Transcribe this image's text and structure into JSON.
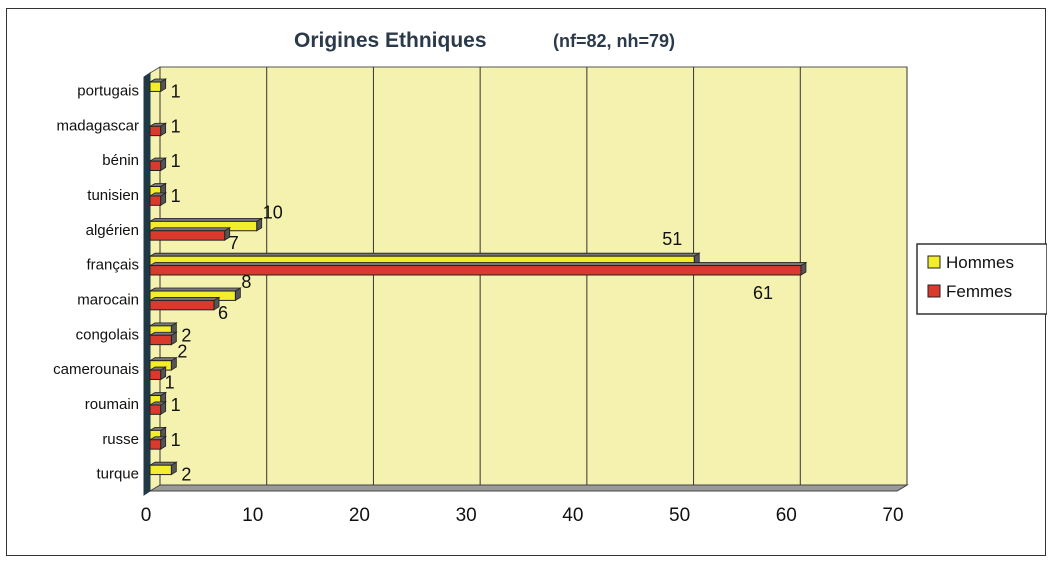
{
  "chart_data": {
    "type": "bar",
    "orientation": "horizontal",
    "title": "Origines Ethniques",
    "subtitle": "(nf=82, nh=79)",
    "categories": [
      "portugais",
      "madagascar",
      "bénin",
      "tunisien",
      "algérien",
      "français",
      "marocain",
      "congolais",
      "camerounais",
      "roumain",
      "russe",
      "turque"
    ],
    "series": [
      {
        "name": "Hommes",
        "color": "#f2ee2a",
        "values": [
          1,
          0,
          0,
          1,
          10,
          51,
          8,
          2,
          2,
          1,
          1,
          2
        ]
      },
      {
        "name": "Femmes",
        "color": "#d93a2b",
        "values": [
          0,
          1,
          1,
          1,
          7,
          61,
          6,
          2,
          1,
          1,
          1,
          0
        ]
      }
    ],
    "data_labels": [
      {
        "category": "portugais",
        "text": "1"
      },
      {
        "category": "madagascar",
        "text": "1"
      },
      {
        "category": "bénin",
        "text": "1"
      },
      {
        "category": "tunisien",
        "text": "1"
      },
      {
        "category": "algérien",
        "series": "Hommes",
        "text": "10"
      },
      {
        "category": "algérien",
        "series": "Femmes",
        "text": "7"
      },
      {
        "category": "français",
        "series": "Hommes",
        "text": "51"
      },
      {
        "category": "français",
        "series": "Femmes",
        "text": "61"
      },
      {
        "category": "marocain",
        "series": "Hommes",
        "text": "8"
      },
      {
        "category": "marocain",
        "series": "Femmes",
        "text": "6"
      },
      {
        "category": "congolais",
        "text": "2"
      },
      {
        "category": "camerounais",
        "series": "Hommes",
        "text": "2"
      },
      {
        "category": "camerounais",
        "series": "Femmes",
        "text": "1"
      },
      {
        "category": "roumain",
        "text": "1"
      },
      {
        "category": "russe",
        "text": "1"
      },
      {
        "category": "turque",
        "text": "2"
      }
    ],
    "xlim": [
      0,
      70
    ],
    "xticks": [
      0,
      10,
      20,
      30,
      40,
      50,
      60,
      70
    ],
    "xlabel": "",
    "ylabel": "",
    "grid": true,
    "legend": "right",
    "plot_background": "#f5f2b0"
  }
}
